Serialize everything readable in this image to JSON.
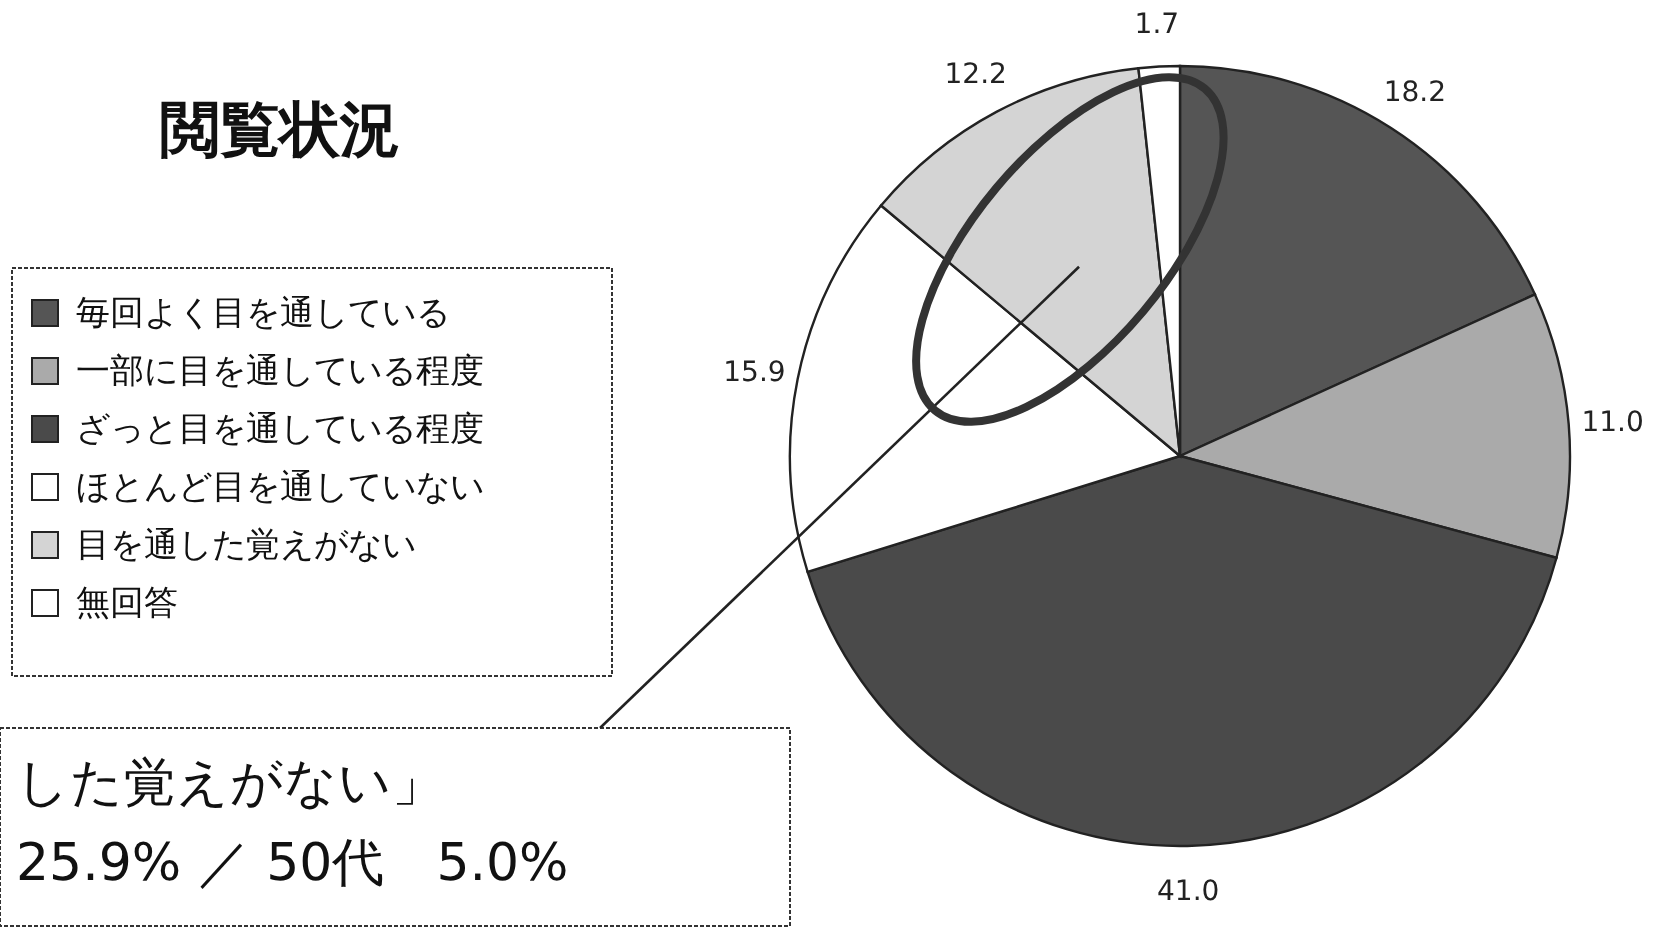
{
  "chart_data": {
    "type": "pie",
    "title": "閲覧状況",
    "categories": [
      "毎回よく目を通している",
      "一部に目を通している程度",
      "ざっと目を通している程度",
      "ほとんど目を通していない",
      "目を通した覚えがない",
      "無回答"
    ],
    "values": [
      18.2,
      11.0,
      41.0,
      15.9,
      12.2,
      1.7
    ],
    "value_labels": [
      "18.2",
      "11.0",
      "41.0",
      "15.9",
      "12.2",
      "1.7"
    ],
    "colors": [
      "#555555",
      "#aaaaaa",
      "#4a4a4a",
      "#ffffff",
      "#d4d4d4",
      "#ffffff"
    ],
    "legend": "left",
    "annotations": [
      "した覚えがない」",
      "25.9% ／ 50代　5.0%"
    ]
  }
}
